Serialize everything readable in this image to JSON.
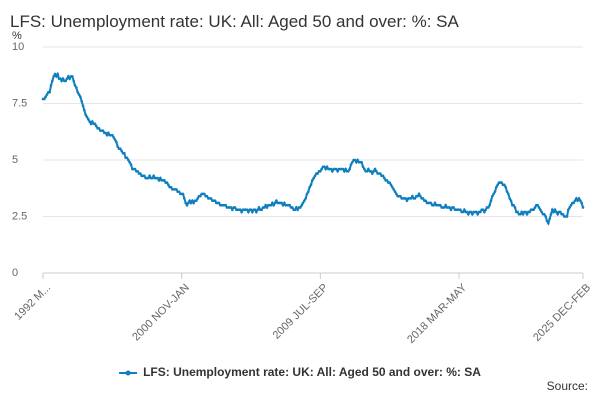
{
  "chart_data": {
    "type": "line",
    "title": "LFS: Unemployment rate: UK: All: Aged 50 and over: %: SA",
    "y_label": "%",
    "source": "Source:",
    "categories": [
      "1992 M...",
      null,
      null,
      null,
      null,
      null,
      null,
      null,
      null,
      null,
      null,
      null,
      null,
      null,
      null,
      null,
      null,
      null,
      null,
      null,
      null,
      null,
      null,
      null,
      null,
      null,
      null,
      null,
      null,
      null,
      null,
      null,
      null,
      null,
      null,
      null,
      null,
      null,
      null,
      null,
      null,
      null,
      null,
      null,
      null,
      null,
      null,
      null,
      null,
      null,
      null,
      null,
      null,
      null,
      null,
      null,
      null,
      null,
      null,
      null,
      null,
      null,
      null,
      null,
      null,
      null,
      null,
      null,
      null,
      null,
      null,
      null,
      null,
      null,
      null,
      null,
      null,
      null,
      null,
      null,
      null,
      null,
      null,
      null,
      null,
      null,
      null,
      null,
      null,
      null,
      null,
      null,
      null,
      null,
      null,
      null,
      null,
      null,
      null,
      null,
      null,
      null,
      null,
      null,
      "2000 NOV-JAN",
      null,
      null,
      null,
      null,
      null,
      null,
      null,
      null,
      null,
      null,
      null,
      null,
      null,
      null,
      null,
      null,
      null,
      null,
      null,
      null,
      null,
      null,
      null,
      null,
      null,
      null,
      null,
      null,
      null,
      null,
      null,
      null,
      null,
      null,
      null,
      null,
      null,
      null,
      null,
      null,
      null,
      null,
      null,
      null,
      null,
      null,
      null,
      null,
      null,
      null,
      null,
      null,
      null,
      null,
      null,
      null,
      null,
      null,
      null,
      null,
      null,
      null,
      null,
      null,
      null,
      null,
      null,
      null,
      null,
      null,
      null,
      null,
      null,
      null,
      null,
      null,
      null,
      null,
      null,
      null,
      null,
      null,
      null,
      null,
      null,
      null,
      null,
      null,
      null,
      null,
      null,
      null,
      null,
      null,
      null,
      null,
      null,
      null,
      null,
      null,
      null,
      null,
      null,
      "2009 JUL-SEP",
      null,
      null,
      null,
      null,
      null,
      null,
      null,
      null,
      null,
      null,
      null,
      null,
      null,
      null,
      null,
      null,
      null,
      null,
      null,
      null,
      null,
      null,
      null,
      null,
      null,
      null,
      null,
      null,
      null,
      null,
      null,
      null,
      null,
      null,
      null,
      null,
      null,
      null,
      null,
      null,
      null,
      null,
      null,
      null,
      null,
      null,
      null,
      null,
      null,
      null,
      null,
      null,
      null,
      null,
      null,
      null,
      null,
      null,
      null,
      null,
      null,
      null,
      null,
      null,
      null,
      null,
      null,
      null,
      null,
      null,
      null,
      null,
      null,
      null,
      null,
      null,
      null,
      null,
      null,
      null,
      null,
      null,
      null,
      null,
      null,
      null,
      null,
      null,
      null,
      null,
      null,
      null,
      null,
      null,
      null,
      null,
      null,
      null,
      null,
      null,
      null,
      null,
      null,
      "2018 MAR-MAY",
      null,
      null,
      null,
      null,
      null,
      null,
      null,
      null,
      null,
      null,
      null,
      null,
      null,
      null,
      null,
      null,
      null,
      null,
      null,
      null,
      null,
      null,
      null,
      null,
      null,
      null,
      null,
      null,
      null,
      null,
      null,
      null,
      null,
      null,
      null,
      null,
      null,
      null,
      null,
      null,
      null,
      null,
      null,
      null,
      null,
      null,
      null,
      null,
      null,
      null,
      null,
      null,
      null,
      null,
      null,
      null,
      null,
      null,
      null,
      null,
      null,
      null,
      null,
      null,
      null,
      null,
      null,
      null,
      null,
      null,
      null,
      null,
      null,
      null,
      null,
      null,
      null,
      null,
      null,
      null,
      null,
      null,
      null,
      null,
      null,
      null,
      null,
      null,
      null,
      null,
      null,
      null,
      "2025 DEC-FEB"
    ],
    "series": [
      {
        "name": "LFS: Unemployment rate: UK: All: Aged 50 and over: %: SA",
        "color": "#0f7fbf",
        "values": [
          7.7,
          7.7,
          7.8,
          7.9,
          8.0,
          8.0,
          8.3,
          8.5,
          8.7,
          8.8,
          8.7,
          8.8,
          8.6,
          8.6,
          8.5,
          8.6,
          8.5,
          8.5,
          8.6,
          8.7,
          8.6,
          8.7,
          8.7,
          8.5,
          8.3,
          8.2,
          8.0,
          7.9,
          7.8,
          7.6,
          7.4,
          7.2,
          7.0,
          6.9,
          6.8,
          6.7,
          6.6,
          6.7,
          6.6,
          6.6,
          6.5,
          6.4,
          6.4,
          6.3,
          6.3,
          6.3,
          6.2,
          6.2,
          6.1,
          6.2,
          6.1,
          6.1,
          6.1,
          6.0,
          5.9,
          5.8,
          5.6,
          5.5,
          5.5,
          5.4,
          5.3,
          5.3,
          5.1,
          5.1,
          5.0,
          4.9,
          4.8,
          4.6,
          4.6,
          4.6,
          4.5,
          4.5,
          4.4,
          4.4,
          4.3,
          4.3,
          4.3,
          4.2,
          4.2,
          4.2,
          4.3,
          4.2,
          4.2,
          4.3,
          4.2,
          4.2,
          4.2,
          4.1,
          4.2,
          4.1,
          4.1,
          4.1,
          4.0,
          4.0,
          3.9,
          3.8,
          3.8,
          3.7,
          3.7,
          3.7,
          3.7,
          3.6,
          3.6,
          3.5,
          3.5,
          3.5,
          3.3,
          3.1,
          3.0,
          3.1,
          3.2,
          3.1,
          3.2,
          3.1,
          3.2,
          3.2,
          3.3,
          3.4,
          3.4,
          3.5,
          3.5,
          3.5,
          3.4,
          3.4,
          3.3,
          3.3,
          3.3,
          3.2,
          3.2,
          3.2,
          3.1,
          3.1,
          3.1,
          3.0,
          3.0,
          3.0,
          3.0,
          3.0,
          2.9,
          2.9,
          2.9,
          2.9,
          2.8,
          2.9,
          2.9,
          2.8,
          2.8,
          2.8,
          2.8,
          2.7,
          2.8,
          2.8,
          2.8,
          2.8,
          2.7,
          2.8,
          2.8,
          2.7,
          2.8,
          2.8,
          2.7,
          2.8,
          2.9,
          2.8,
          2.8,
          2.9,
          2.9,
          3.0,
          2.9,
          3.0,
          3.0,
          3.0,
          3.1,
          3.0,
          3.1,
          3.2,
          3.1,
          3.1,
          3.1,
          3.1,
          3.0,
          3.1,
          3.0,
          3.0,
          3.0,
          3.0,
          2.9,
          2.9,
          2.8,
          2.8,
          2.9,
          2.8,
          2.9,
          2.9,
          3.0,
          3.1,
          3.2,
          3.3,
          3.5,
          3.6,
          3.8,
          3.9,
          4.1,
          4.2,
          4.3,
          4.4,
          4.4,
          4.5,
          4.5,
          4.6,
          4.7,
          4.7,
          4.6,
          4.7,
          4.6,
          4.6,
          4.6,
          4.5,
          4.6,
          4.6,
          4.6,
          4.5,
          4.6,
          4.6,
          4.6,
          4.6,
          4.5,
          4.6,
          4.5,
          4.5,
          4.6,
          4.8,
          4.9,
          5.0,
          5.0,
          4.9,
          5.0,
          4.9,
          4.9,
          4.9,
          4.7,
          4.6,
          4.5,
          4.5,
          4.6,
          4.5,
          4.5,
          4.4,
          4.5,
          4.6,
          4.5,
          4.4,
          4.4,
          4.4,
          4.3,
          4.3,
          4.2,
          4.1,
          4.1,
          4.0,
          4.0,
          3.9,
          3.8,
          3.7,
          3.6,
          3.5,
          3.4,
          3.4,
          3.4,
          3.3,
          3.3,
          3.3,
          3.3,
          3.2,
          3.3,
          3.3,
          3.3,
          3.4,
          3.3,
          3.3,
          3.4,
          3.4,
          3.5,
          3.4,
          3.3,
          3.3,
          3.2,
          3.2,
          3.1,
          3.1,
          3.1,
          3.1,
          3.0,
          3.0,
          3.1,
          3.0,
          3.0,
          3.0,
          3.0,
          2.9,
          2.9,
          2.9,
          3.0,
          2.9,
          2.9,
          2.9,
          2.8,
          2.9,
          2.9,
          2.8,
          2.8,
          2.8,
          2.8,
          2.8,
          2.7,
          2.7,
          2.8,
          2.7,
          2.7,
          2.6,
          2.7,
          2.7,
          2.6,
          2.7,
          2.7,
          2.7,
          2.6,
          2.7,
          2.7,
          2.8,
          2.8,
          2.7,
          2.8,
          2.9,
          2.9,
          3.0,
          3.2,
          3.4,
          3.5,
          3.6,
          3.8,
          3.9,
          4.0,
          4.0,
          4.0,
          3.9,
          3.9,
          3.8,
          3.6,
          3.5,
          3.3,
          3.2,
          3.0,
          3.0,
          2.9,
          2.7,
          2.7,
          2.6,
          2.6,
          2.7,
          2.6,
          2.7,
          2.7,
          2.6,
          2.7,
          2.7,
          2.8,
          2.8,
          2.8,
          2.9,
          3.0,
          3.0,
          2.9,
          2.8,
          2.7,
          2.6,
          2.6,
          2.5,
          2.3,
          2.2,
          2.4,
          2.6,
          2.8,
          2.7,
          2.8,
          2.7,
          2.6,
          2.7,
          2.7,
          2.6,
          2.6,
          2.5,
          2.5,
          2.5,
          2.8,
          2.9,
          3.0,
          3.1,
          3.1,
          3.2,
          3.3,
          3.2,
          3.3,
          3.2,
          3.1,
          2.9
        ]
      }
    ],
    "ylim": [
      0,
      10
    ],
    "yticks": [
      0,
      2.5,
      5,
      7.5,
      10
    ],
    "grid": true,
    "legend": "bottom"
  }
}
